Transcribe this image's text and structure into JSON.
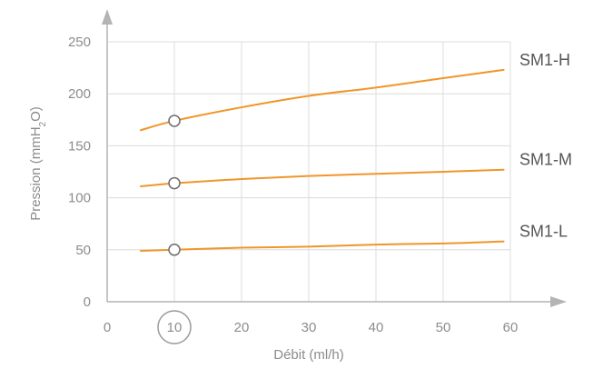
{
  "chart_data": {
    "type": "line",
    "xlabel": "Débit (ml/h)",
    "ylabel_prefix": "Pression (mmH",
    "ylabel_sub": "2",
    "ylabel_suffix": "O)",
    "xlim": [
      0,
      60
    ],
    "ylim": [
      0,
      250
    ],
    "xticks": [
      0,
      10,
      20,
      30,
      40,
      50,
      60
    ],
    "yticks": [
      0,
      50,
      100,
      150,
      200,
      250
    ],
    "grid": true,
    "highlight_x": 10,
    "series": [
      {
        "name": "SM1-H",
        "x": [
          5,
          10,
          20,
          30,
          40,
          50,
          59
        ],
        "y": [
          165,
          174,
          187,
          198,
          206,
          215,
          223
        ]
      },
      {
        "name": "SM1-M",
        "x": [
          5,
          10,
          20,
          30,
          40,
          50,
          59
        ],
        "y": [
          111,
          114,
          118,
          121,
          123,
          125,
          127
        ]
      },
      {
        "name": "SM1-L",
        "x": [
          5,
          10,
          20,
          30,
          40,
          50,
          59
        ],
        "y": [
          49,
          50,
          52,
          53,
          55,
          56,
          58
        ]
      }
    ],
    "markers": [
      {
        "series": "SM1-H",
        "x": 10,
        "y": 174
      },
      {
        "series": "SM1-M",
        "x": 10,
        "y": 114
      },
      {
        "series": "SM1-L",
        "x": 10,
        "y": 50
      }
    ],
    "colors": {
      "line": "#f0962a",
      "grid": "#dcdcdc",
      "axis": "#b4b4b4",
      "text": "#8c8c8c",
      "label": "#555555"
    }
  }
}
